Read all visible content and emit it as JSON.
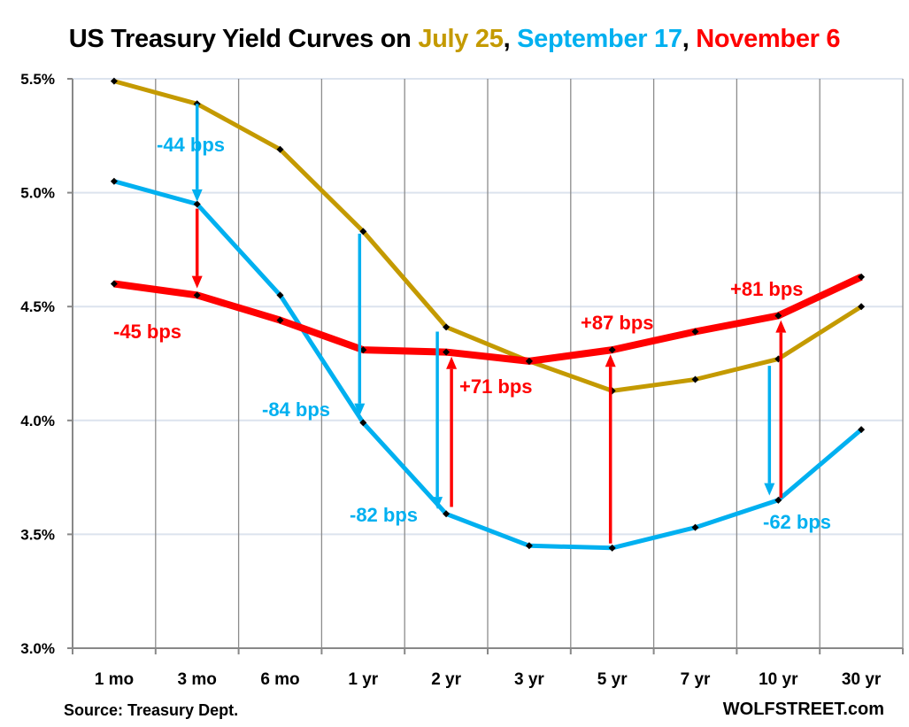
{
  "chart_data": {
    "type": "line",
    "title_parts": [
      {
        "text": "US Treasury Yield Curves on ",
        "color": "#000000"
      },
      {
        "text": "July 25",
        "color": "#C49A00"
      },
      {
        "text": ", ",
        "color": "#000000"
      },
      {
        "text": "September 17",
        "color": "#00B0F0"
      },
      {
        "text": ", ",
        "color": "#000000"
      },
      {
        "text": "November 6",
        "color": "#FF0000"
      }
    ],
    "categories": [
      "1 mo",
      "3 mo",
      "6 mo",
      "1 yr",
      "2 yr",
      "3 yr",
      "5 yr",
      "7 yr",
      "10 yr",
      "30 yr"
    ],
    "y_ticks": [
      "3.0%",
      "3.5%",
      "4.0%",
      "4.5%",
      "5.0%",
      "5.5%"
    ],
    "ylim": [
      3.0,
      5.5
    ],
    "grid": true,
    "series": [
      {
        "name": "July 25",
        "color": "#C49A00",
        "values": [
          5.49,
          5.39,
          5.19,
          4.83,
          4.41,
          4.26,
          4.13,
          4.18,
          4.27,
          4.5
        ]
      },
      {
        "name": "September 17",
        "color": "#00B0F0",
        "values": [
          5.05,
          4.95,
          4.55,
          3.99,
          3.59,
          3.45,
          3.44,
          3.53,
          3.65,
          3.96
        ]
      },
      {
        "name": "November 6",
        "color": "#FF0000",
        "values": [
          4.6,
          4.55,
          4.44,
          4.31,
          4.3,
          4.26,
          4.31,
          4.39,
          4.46,
          4.63
        ]
      }
    ],
    "annotations": [
      {
        "text": "-44 bps",
        "color": "#00B0F0"
      },
      {
        "text": "-45 bps",
        "color": "#FF0000"
      },
      {
        "text": "-84 bps",
        "color": "#00B0F0"
      },
      {
        "text": "-82 bps",
        "color": "#00B0F0"
      },
      {
        "text": "+71 bps",
        "color": "#FF0000"
      },
      {
        "text": "+87 bps",
        "color": "#FF0000"
      },
      {
        "text": "+81 bps",
        "color": "#FF0000"
      },
      {
        "text": "-62 bps",
        "color": "#00B0F0"
      }
    ],
    "arrows": [
      {
        "color": "#00B0F0",
        "category": "3 mo",
        "from": 5.39,
        "to": 4.96
      },
      {
        "color": "#FF0000",
        "category": "3 mo",
        "from": 4.93,
        "to": 4.58
      },
      {
        "color": "#00B0F0",
        "category": "1 yr",
        "from": 4.82,
        "to": 4.02
      },
      {
        "color": "#00B0F0",
        "category": "2 yr",
        "from": 4.39,
        "to": 3.61
      },
      {
        "color": "#FF0000",
        "category": "2 yr",
        "from": 3.62,
        "to": 4.28
      },
      {
        "color": "#FF0000",
        "category": "5 yr",
        "from": 3.46,
        "to": 4.29
      },
      {
        "color": "#00B0F0",
        "category": "10 yr",
        "from": 4.24,
        "to": 3.67
      },
      {
        "color": "#FF0000",
        "category": "10 yr",
        "from": 3.66,
        "to": 4.44
      }
    ]
  },
  "footer": {
    "source": "Source: Treasury Dept.",
    "brand": "WOLFSTREET.com"
  }
}
